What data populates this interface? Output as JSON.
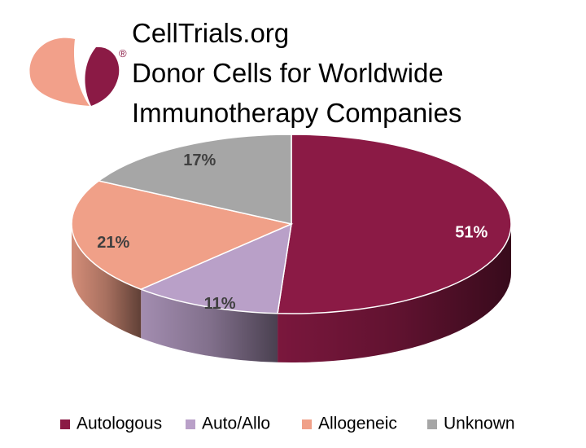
{
  "chart_data": {
    "type": "pie3d",
    "logo_mark": "®",
    "title": [
      "CellTrials.org",
      "Donor Cells for Worldwide",
      "Immunotherapy Companies"
    ],
    "categories": [
      "Autologous",
      "Auto/Allo",
      "Allogeneic",
      "Unknown"
    ],
    "values": [
      51,
      11,
      21,
      17
    ],
    "value_labels": [
      "51%",
      "11%",
      "21%",
      "17%"
    ],
    "colors": [
      "#8b1a45",
      "#b9a0c8",
      "#f0a088",
      "#a6a6a6"
    ],
    "label_colors": [
      "#ffffff",
      "#404040",
      "#404040",
      "#404040"
    ],
    "legend": "bottom"
  }
}
